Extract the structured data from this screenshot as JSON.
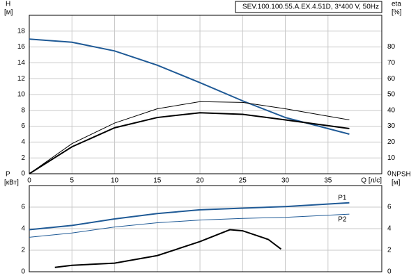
{
  "chart_data": [
    {
      "type": "line",
      "title": "SEV.100.100.55.A.EX.4.51D, 3*400 V, 50Hz",
      "ylabel": "H",
      "yunit": "[м]",
      "y2label": "eta",
      "y2unit": "[%]",
      "xlabel": "Q [л/с]",
      "xlim": [
        0,
        41.3
      ],
      "xticks": [
        0,
        5,
        10,
        15,
        20,
        25,
        30,
        35
      ],
      "ylim": [
        0,
        20
      ],
      "yticks": [
        0,
        2,
        4,
        6,
        8,
        10,
        12,
        14,
        16,
        18
      ],
      "y2lim": [
        0,
        100
      ],
      "y2ticks": [
        0,
        10,
        20,
        30,
        40,
        50,
        60,
        70,
        80
      ],
      "grid": true,
      "series": [
        {
          "color": "#1f5a96",
          "width": 2,
          "x": [
            0,
            5,
            10,
            15,
            20,
            25,
            30,
            37.5
          ],
          "values": [
            17,
            16.6,
            15.5,
            13.7,
            11.5,
            9.2,
            7.1,
            5.0
          ]
        },
        {
          "color": "#000000",
          "width": 1,
          "axis": "y2",
          "x": [
            0,
            5,
            10,
            15,
            20,
            25,
            30,
            37.5
          ],
          "values": [
            0,
            19,
            32,
            41,
            45.5,
            45,
            41,
            34
          ]
        },
        {
          "color": "#000000",
          "width": 2,
          "axis": "y2",
          "x": [
            0,
            5,
            10,
            15,
            20,
            25,
            30,
            37.5
          ],
          "values": [
            0,
            17,
            29,
            35.5,
            38.5,
            37.5,
            34,
            28.5
          ]
        }
      ]
    },
    {
      "type": "line",
      "ylabel": "P",
      "yunit": "[кВт]",
      "y2label": "NPSH",
      "y2unit": "[м]",
      "xlim": [
        0,
        41.3
      ],
      "ylim": [
        0,
        8
      ],
      "yticks": [
        0,
        2,
        4,
        6
      ],
      "y2lim": [
        0,
        8
      ],
      "y2ticks": [
        0,
        2,
        4,
        6
      ],
      "grid": true,
      "series": [
        {
          "name": "P1",
          "color": "#1f5a96",
          "width": 2,
          "x": [
            0,
            5,
            10,
            15,
            20,
            25,
            30,
            37.5
          ],
          "values": [
            3.9,
            4.3,
            4.9,
            5.4,
            5.75,
            5.9,
            6.05,
            6.4
          ]
        },
        {
          "name": "P2",
          "color": "#1f5a96",
          "width": 1,
          "x": [
            0,
            5,
            10,
            15,
            20,
            25,
            30,
            37.5
          ],
          "values": [
            3.2,
            3.6,
            4.15,
            4.55,
            4.8,
            4.95,
            5.05,
            5.35
          ]
        },
        {
          "color": "#000000",
          "width": 2,
          "axis": "y2",
          "x": [
            3,
            5,
            10,
            15,
            20,
            23.5,
            25,
            28,
            29.5
          ],
          "values": [
            0.4,
            0.6,
            0.8,
            1.5,
            2.8,
            3.9,
            3.8,
            3.0,
            2.1
          ]
        }
      ]
    }
  ]
}
